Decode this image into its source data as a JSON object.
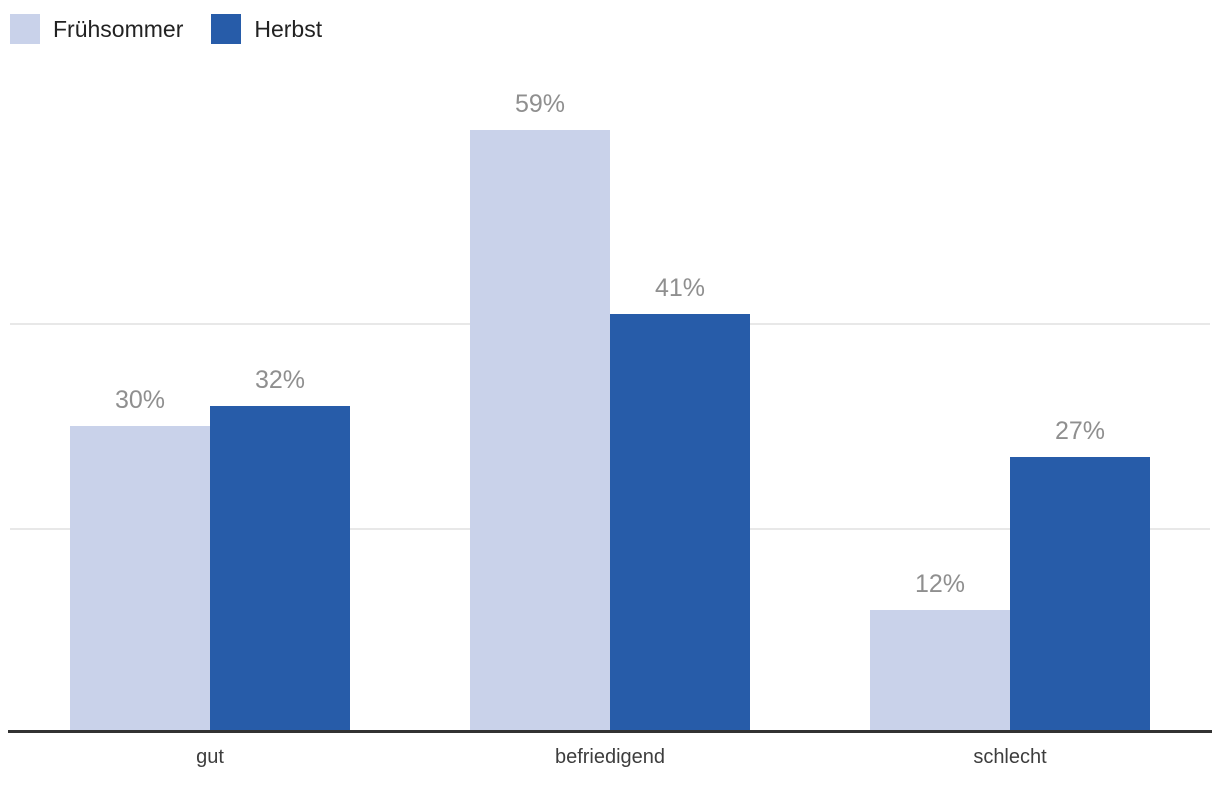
{
  "chart_data": {
    "type": "bar",
    "title": "",
    "xlabel": "",
    "ylabel": "",
    "categories": [
      "gut",
      "befriedigend",
      "schlecht"
    ],
    "series": [
      {
        "name": "Frühsommer",
        "color": "#c9d2ea",
        "values": [
          30,
          59,
          12
        ],
        "labels": [
          "30%",
          "59%",
          "12%"
        ]
      },
      {
        "name": "Herbst",
        "color": "#275ca9",
        "values": [
          32,
          41,
          27
        ],
        "labels": [
          "32%",
          "41%",
          "27%"
        ]
      }
    ],
    "ylim": [
      0,
      64
    ],
    "gridlines": [
      20,
      40
    ],
    "grid": true,
    "legend_position": "top-left",
    "value_label_color": "#8f8f8f",
    "category_label_color": "#3d3d3d",
    "gridline_color": "#e8e8e8",
    "axis_color": "#323232",
    "background_color": "#ffffff"
  }
}
